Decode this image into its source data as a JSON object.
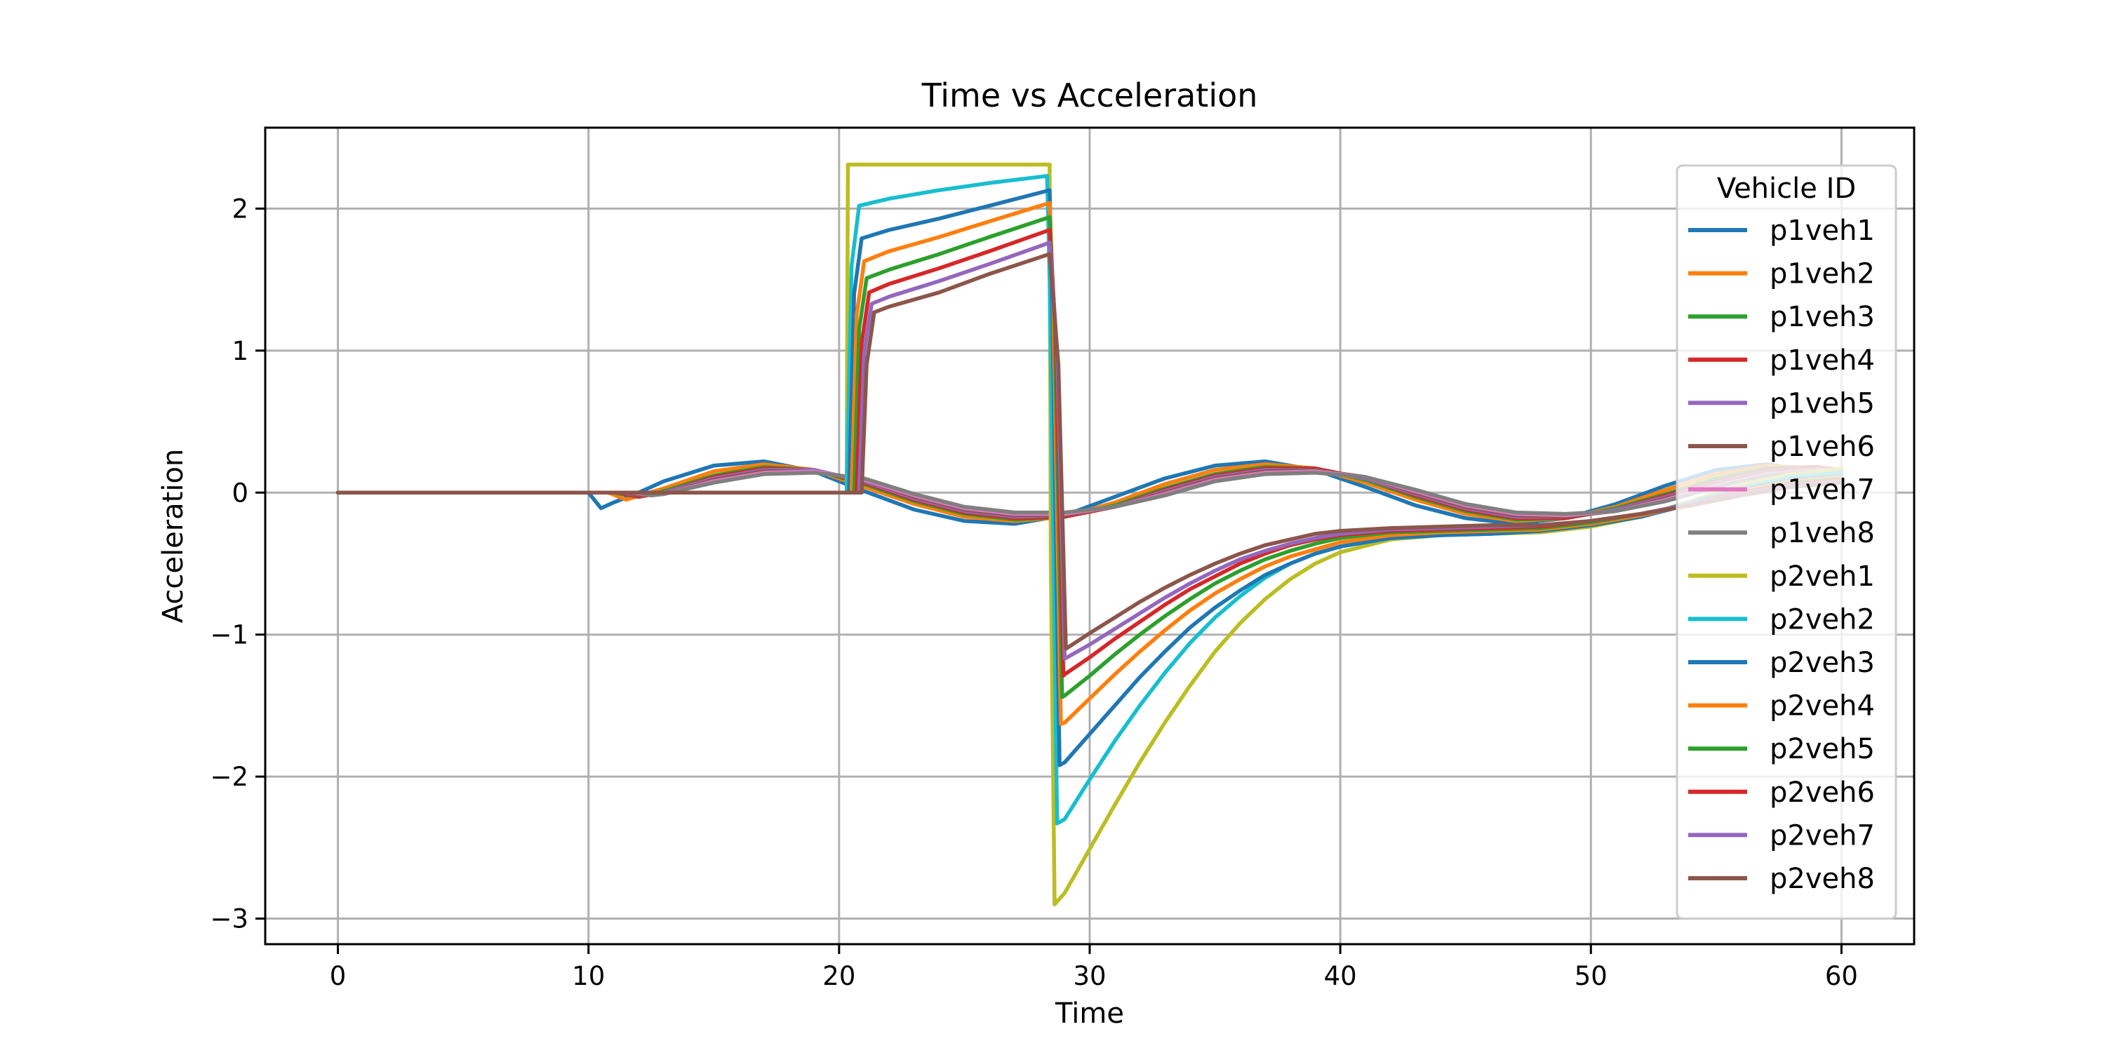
{
  "chart_data": {
    "type": "line",
    "title": "Time vs Acceleration",
    "xlabel": "Time",
    "ylabel": "Acceleration",
    "xlim": [
      -2.9,
      62.9
    ],
    "ylim": [
      -3.18,
      2.57
    ],
    "xticks": [
      0,
      10,
      20,
      30,
      40,
      50,
      60
    ],
    "yticks": [
      -3,
      -2,
      -1,
      0,
      1,
      2
    ],
    "ytick_labels": [
      "−3",
      "−2",
      "−1",
      "0",
      "1",
      "2"
    ],
    "grid": true,
    "legend": {
      "title": "Vehicle ID",
      "placement": "right"
    },
    "series": [
      {
        "name": "p1veh1",
        "color": "#1f77b4",
        "x": [
          0,
          10,
          10.5,
          11,
          12,
          13,
          15,
          17,
          19,
          21,
          23,
          25,
          27,
          29,
          31,
          33,
          35,
          37,
          39,
          41,
          43,
          45,
          47,
          49,
          51,
          53,
          55,
          57,
          59,
          60
        ],
        "y": [
          0,
          0,
          -0.11,
          -0.07,
          0.0,
          0.08,
          0.19,
          0.22,
          0.15,
          0.01,
          -0.12,
          -0.2,
          -0.22,
          -0.16,
          -0.03,
          0.1,
          0.19,
          0.22,
          0.16,
          0.04,
          -0.09,
          -0.18,
          -0.22,
          -0.18,
          -0.08,
          0.05,
          0.16,
          0.2,
          0.15,
          0.1
        ]
      },
      {
        "name": "p1veh2",
        "color": "#ff7f0e",
        "x": [
          0,
          10.8,
          11.5,
          13,
          15,
          17,
          19,
          21,
          23,
          25,
          27,
          29,
          31,
          33,
          35,
          37,
          39,
          41,
          43,
          45,
          47,
          49,
          51,
          53,
          55,
          57,
          59,
          60
        ],
        "y": [
          0,
          0,
          -0.05,
          0.03,
          0.15,
          0.2,
          0.16,
          0.04,
          -0.08,
          -0.17,
          -0.2,
          -0.17,
          -0.07,
          0.06,
          0.16,
          0.2,
          0.17,
          0.07,
          -0.05,
          -0.15,
          -0.2,
          -0.18,
          -0.1,
          0.02,
          0.13,
          0.19,
          0.17,
          0.13
        ]
      },
      {
        "name": "p1veh3",
        "color": "#2ca02c",
        "x": [
          0,
          11,
          12,
          13,
          15,
          17,
          19,
          21,
          23,
          25,
          27,
          29,
          31,
          33,
          35,
          37,
          39,
          41,
          43,
          45,
          47,
          49,
          51,
          53,
          55,
          57,
          59,
          60
        ],
        "y": [
          0,
          0,
          -0.03,
          0.01,
          0.12,
          0.18,
          0.16,
          0.06,
          -0.06,
          -0.15,
          -0.19,
          -0.17,
          -0.09,
          0.03,
          0.13,
          0.18,
          0.17,
          0.09,
          -0.03,
          -0.13,
          -0.19,
          -0.18,
          -0.11,
          -0.01,
          0.1,
          0.17,
          0.18,
          0.15
        ]
      },
      {
        "name": "p1veh4",
        "color": "#d62728",
        "x": [
          0,
          11.2,
          12,
          13,
          15,
          17,
          19,
          21,
          23,
          25,
          27,
          29,
          31,
          33,
          35,
          37,
          39,
          41,
          43,
          45,
          47,
          49,
          51,
          53,
          55,
          57,
          59,
          60
        ],
        "y": [
          0,
          0,
          -0.03,
          0.0,
          0.11,
          0.17,
          0.16,
          0.07,
          -0.05,
          -0.14,
          -0.18,
          -0.17,
          -0.1,
          0.02,
          0.12,
          0.17,
          0.17,
          0.1,
          -0.02,
          -0.12,
          -0.18,
          -0.18,
          -0.12,
          -0.02,
          0.08,
          0.16,
          0.18,
          0.16
        ]
      },
      {
        "name": "p1veh5",
        "color": "#9467bd",
        "x": [
          0,
          11.4,
          12,
          13,
          15,
          17,
          19,
          21,
          23,
          25,
          27,
          29,
          31,
          33,
          35,
          37,
          39,
          41,
          43,
          45,
          47,
          49,
          51,
          53,
          55,
          57,
          59,
          60
        ],
        "y": [
          0,
          0,
          -0.02,
          0.0,
          0.1,
          0.16,
          0.16,
          0.08,
          -0.04,
          -0.13,
          -0.17,
          -0.16,
          -0.1,
          0.01,
          0.11,
          0.16,
          0.16,
          0.1,
          -0.01,
          -0.11,
          -0.17,
          -0.17,
          -0.12,
          -0.03,
          0.07,
          0.15,
          0.17,
          0.16
        ]
      },
      {
        "name": "p1veh6",
        "color": "#8c564b",
        "x": [
          0,
          11.6,
          12,
          13,
          15,
          17,
          19,
          21,
          23,
          25,
          27,
          29,
          31,
          33,
          35,
          37,
          39,
          41,
          43,
          45,
          47,
          49,
          51,
          53,
          55,
          57,
          59,
          60
        ],
        "y": [
          0,
          0,
          -0.02,
          -0.01,
          0.09,
          0.15,
          0.15,
          0.09,
          -0.03,
          -0.12,
          -0.16,
          -0.16,
          -0.1,
          0.0,
          0.1,
          0.15,
          0.16,
          0.11,
          0.0,
          -0.1,
          -0.16,
          -0.17,
          -0.13,
          -0.04,
          0.06,
          0.14,
          0.17,
          0.16
        ]
      },
      {
        "name": "p1veh7",
        "color": "#e377c2",
        "x": [
          0,
          11.8,
          12.5,
          13,
          15,
          17,
          19,
          21,
          23,
          25,
          27,
          29,
          31,
          33,
          35,
          37,
          39,
          41,
          43,
          45,
          47,
          49,
          51,
          53,
          55,
          57,
          59,
          60
        ],
        "y": [
          0,
          0,
          -0.02,
          -0.01,
          0.08,
          0.14,
          0.15,
          0.09,
          -0.02,
          -0.11,
          -0.15,
          -0.15,
          -0.1,
          -0.01,
          0.09,
          0.14,
          0.15,
          0.11,
          0.01,
          -0.09,
          -0.15,
          -0.16,
          -0.13,
          -0.05,
          0.05,
          0.13,
          0.16,
          0.16
        ]
      },
      {
        "name": "p1veh8",
        "color": "#7f7f7f",
        "x": [
          0,
          12,
          12.5,
          13,
          15,
          17,
          19,
          21,
          23,
          25,
          27,
          29,
          31,
          33,
          35,
          37,
          39,
          41,
          43,
          45,
          47,
          49,
          51,
          53,
          55,
          57,
          59,
          60
        ],
        "y": [
          0,
          0,
          -0.02,
          -0.01,
          0.07,
          0.13,
          0.14,
          0.1,
          -0.01,
          -0.1,
          -0.14,
          -0.14,
          -0.1,
          -0.02,
          0.08,
          0.13,
          0.14,
          0.11,
          0.02,
          -0.08,
          -0.14,
          -0.15,
          -0.13,
          -0.06,
          0.04,
          0.12,
          0.15,
          0.15
        ]
      },
      {
        "name": "p2veh1",
        "color": "#bcbd22",
        "x": [
          0,
          20.3,
          20.35,
          28.4,
          28.45,
          28.6,
          29,
          30,
          31,
          32,
          33,
          34,
          35,
          36,
          37,
          38,
          39,
          40,
          42,
          44,
          46,
          48,
          50,
          52,
          54,
          56,
          58,
          60
        ],
        "y": [
          0,
          0,
          2.31,
          2.31,
          -0.5,
          -2.9,
          -2.82,
          -2.51,
          -2.2,
          -1.9,
          -1.62,
          -1.36,
          -1.12,
          -0.92,
          -0.75,
          -0.61,
          -0.5,
          -0.42,
          -0.33,
          -0.3,
          -0.29,
          -0.28,
          -0.24,
          -0.17,
          -0.06,
          0.05,
          0.13,
          0.17
        ]
      },
      {
        "name": "p2veh2",
        "color": "#17becf",
        "x": [
          0,
          20.3,
          20.5,
          20.8,
          22,
          24,
          26,
          28.3,
          28.4,
          28.7,
          29,
          30,
          31,
          32,
          33,
          34,
          35,
          36,
          37,
          38,
          39,
          40,
          42,
          44,
          46,
          48,
          50,
          52,
          54,
          56,
          58,
          60
        ],
        "y": [
          0,
          0,
          1.6,
          2.02,
          2.07,
          2.13,
          2.18,
          2.23,
          1.5,
          -2.33,
          -2.3,
          -2.02,
          -1.75,
          -1.5,
          -1.27,
          -1.06,
          -0.88,
          -0.73,
          -0.6,
          -0.5,
          -0.43,
          -0.38,
          -0.32,
          -0.3,
          -0.29,
          -0.27,
          -0.23,
          -0.16,
          -0.07,
          0.03,
          0.11,
          0.14
        ]
      },
      {
        "name": "p2veh3",
        "color": "#1f77b4",
        "x": [
          0,
          20.4,
          20.6,
          20.9,
          22,
          24,
          26,
          28.4,
          28.5,
          28.8,
          29,
          30,
          31,
          32,
          33,
          34,
          35,
          36,
          37,
          38,
          39,
          40,
          42,
          44,
          46,
          48,
          50,
          52,
          54,
          56,
          58,
          60
        ],
        "y": [
          0,
          0,
          1.4,
          1.79,
          1.85,
          1.93,
          2.02,
          2.13,
          1.4,
          -1.92,
          -1.9,
          -1.7,
          -1.5,
          -1.3,
          -1.12,
          -0.95,
          -0.81,
          -0.69,
          -0.58,
          -0.5,
          -0.43,
          -0.38,
          -0.32,
          -0.3,
          -0.29,
          -0.27,
          -0.23,
          -0.17,
          -0.08,
          0.02,
          0.09,
          0.12
        ]
      },
      {
        "name": "p2veh4",
        "color": "#ff7f0e",
        "x": [
          0,
          20.5,
          20.7,
          21,
          22,
          24,
          26,
          28.4,
          28.55,
          28.85,
          29,
          30,
          31,
          32,
          33,
          34,
          35,
          36,
          37,
          38,
          39,
          40,
          42,
          44,
          46,
          48,
          50,
          52,
          54,
          56,
          58,
          60
        ],
        "y": [
          0,
          0,
          1.25,
          1.63,
          1.7,
          1.8,
          1.91,
          2.04,
          1.3,
          -1.63,
          -1.62,
          -1.45,
          -1.28,
          -1.12,
          -0.97,
          -0.83,
          -0.71,
          -0.61,
          -0.52,
          -0.45,
          -0.4,
          -0.35,
          -0.3,
          -0.28,
          -0.27,
          -0.26,
          -0.22,
          -0.16,
          -0.08,
          0.01,
          0.08,
          0.11
        ]
      },
      {
        "name": "p2veh5",
        "color": "#2ca02c",
        "x": [
          0,
          20.6,
          20.8,
          21.1,
          22,
          24,
          26,
          28.4,
          28.6,
          28.9,
          29,
          30,
          31,
          32,
          33,
          34,
          35,
          36,
          37,
          38,
          39,
          40,
          42,
          44,
          46,
          48,
          50,
          52,
          54,
          56,
          58,
          60
        ],
        "y": [
          0,
          0,
          1.15,
          1.51,
          1.57,
          1.68,
          1.8,
          1.94,
          1.2,
          -1.44,
          -1.43,
          -1.29,
          -1.14,
          -1.0,
          -0.87,
          -0.75,
          -0.64,
          -0.55,
          -0.47,
          -0.41,
          -0.36,
          -0.32,
          -0.28,
          -0.27,
          -0.26,
          -0.25,
          -0.21,
          -0.15,
          -0.08,
          0.0,
          0.07,
          0.1
        ]
      },
      {
        "name": "p2veh6",
        "color": "#d62728",
        "x": [
          0,
          20.7,
          20.9,
          21.2,
          22,
          24,
          26,
          28.4,
          28.65,
          28.95,
          29,
          30,
          31,
          32,
          33,
          34,
          35,
          36,
          37,
          38,
          39,
          40,
          42,
          44,
          46,
          48,
          50,
          52,
          54,
          56,
          58,
          60
        ],
        "y": [
          0,
          0,
          1.05,
          1.41,
          1.47,
          1.58,
          1.7,
          1.85,
          1.1,
          -1.29,
          -1.28,
          -1.16,
          -1.03,
          -0.91,
          -0.79,
          -0.68,
          -0.59,
          -0.5,
          -0.43,
          -0.37,
          -0.33,
          -0.3,
          -0.27,
          -0.26,
          -0.25,
          -0.24,
          -0.2,
          -0.15,
          -0.08,
          0.0,
          0.06,
          0.09
        ]
      },
      {
        "name": "p2veh7",
        "color": "#9467bd",
        "x": [
          0,
          20.8,
          21,
          21.3,
          22,
          24,
          26,
          28.4,
          28.7,
          29,
          30,
          31,
          32,
          33,
          34,
          35,
          36,
          37,
          38,
          39,
          40,
          42,
          44,
          46,
          48,
          50,
          52,
          54,
          56,
          58,
          60
        ],
        "y": [
          0,
          0,
          0.98,
          1.33,
          1.38,
          1.49,
          1.61,
          1.76,
          1.0,
          -1.17,
          -1.07,
          -0.96,
          -0.85,
          -0.74,
          -0.64,
          -0.55,
          -0.47,
          -0.41,
          -0.36,
          -0.32,
          -0.29,
          -0.26,
          -0.25,
          -0.24,
          -0.23,
          -0.2,
          -0.15,
          -0.08,
          -0.01,
          0.05,
          0.08
        ]
      },
      {
        "name": "p2veh8",
        "color": "#8c564b",
        "x": [
          0,
          20.9,
          21.1,
          21.4,
          22,
          24,
          26,
          28.4,
          28.75,
          29.05,
          30,
          31,
          32,
          33,
          34,
          35,
          36,
          37,
          38,
          39,
          40,
          42,
          44,
          46,
          48,
          50,
          52,
          54,
          56,
          58,
          60
        ],
        "y": [
          0,
          0,
          0.9,
          1.27,
          1.31,
          1.41,
          1.54,
          1.68,
          0.9,
          -1.1,
          -0.99,
          -0.88,
          -0.77,
          -0.67,
          -0.58,
          -0.5,
          -0.43,
          -0.37,
          -0.33,
          -0.29,
          -0.27,
          -0.25,
          -0.24,
          -0.23,
          -0.23,
          -0.2,
          -0.15,
          -0.09,
          -0.02,
          0.04,
          0.07
        ]
      }
    ]
  }
}
